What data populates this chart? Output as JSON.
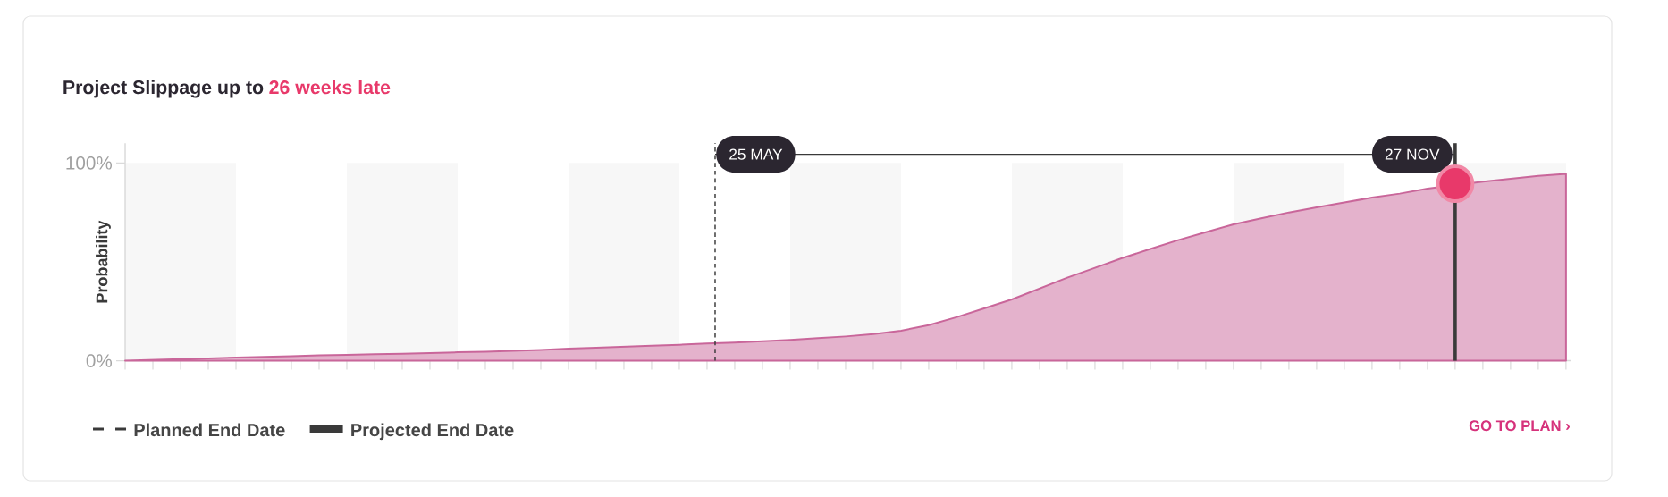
{
  "chart_data": {
    "type": "area",
    "title": "Project Slippage up to",
    "subtitle": "26 weeks late",
    "ylabel": "Probability",
    "categories": [
      null,
      null,
      null,
      null,
      null,
      null,
      null,
      null,
      null,
      null,
      null,
      null,
      null,
      null,
      null,
      null,
      null,
      null,
      null,
      null,
      null,
      null,
      null,
      null,
      null,
      null,
      null,
      null,
      null,
      null,
      null,
      null,
      null,
      null,
      null,
      null,
      null,
      null,
      null,
      null,
      null,
      null,
      null,
      null,
      null,
      null,
      null,
      null,
      null,
      null,
      null,
      null,
      null
    ],
    "ylim": [
      0,
      110
    ],
    "yticks": [
      {
        "value": 0,
        "label": "0%"
      },
      {
        "value": 100,
        "label": "100%"
      }
    ],
    "tick_labels": "y",
    "series": [
      {
        "color": "#c9669a",
        "values": [
          0,
          0.4,
          0.8,
          1.2,
          1.6,
          2.0,
          2.3,
          2.7,
          3.0,
          3.3,
          3.6,
          3.9,
          4.3,
          4.6,
          5.0,
          5.5,
          6.1,
          6.6,
          7.1,
          7.6,
          8.1,
          8.7,
          9.2,
          9.9,
          10.6,
          11.4,
          12.3,
          13.5,
          15.2,
          18,
          22,
          26.5,
          31,
          36.5,
          42,
          47,
          52,
          56.5,
          61,
          65,
          69,
          72,
          75,
          77.5,
          80,
          82.5,
          84.5,
          87,
          null,
          90.5,
          92,
          93.5,
          94.5
        ]
      },
      {
        "type": "scatter",
        "color": "#e8396a",
        "marker": "circle",
        "values": [
          null,
          null,
          null,
          null,
          null,
          null,
          null,
          null,
          null,
          null,
          null,
          null,
          null,
          null,
          null,
          null,
          null,
          null,
          null,
          null,
          null,
          null,
          null,
          null,
          null,
          null,
          null,
          null,
          null,
          null,
          null,
          null,
          null,
          null,
          null,
          null,
          null,
          null,
          null,
          null,
          null,
          null,
          null,
          null,
          null,
          null,
          null,
          null,
          89.5,
          null,
          null,
          null,
          null
        ]
      }
    ],
    "annotations": [
      "25 MAY",
      "27 NOV",
      "Planned End Date",
      "Projected End Date",
      "GO TO PLAN ›"
    ]
  }
}
